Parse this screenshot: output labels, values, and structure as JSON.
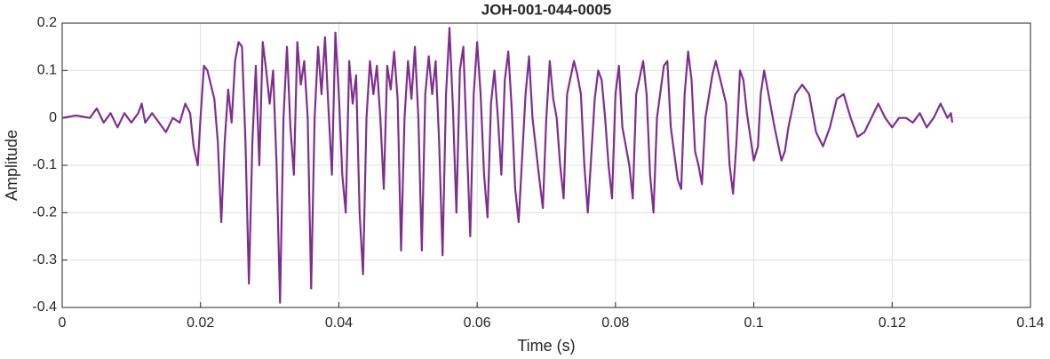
{
  "chart_data": {
    "type": "line",
    "title": "JOH-001-044-0005",
    "x_label": "Time (s)",
    "y_label": "Amplitude",
    "color": "#7e2f8e",
    "grid": true,
    "xlim": [
      0,
      0.14
    ],
    "ylim": [
      -0.4,
      0.2
    ],
    "xticks": [
      0,
      0.02,
      0.04,
      0.06,
      0.08,
      0.1,
      0.12,
      0.14
    ],
    "yticks": [
      -0.4,
      -0.3,
      -0.2,
      -0.1,
      0,
      0.1,
      0.2
    ],
    "x": [
      0,
      0.002,
      0.004,
      0.005,
      0.006,
      0.007,
      0.008,
      0.009,
      0.01,
      0.011,
      0.0115,
      0.012,
      0.013,
      0.014,
      0.015,
      0.016,
      0.017,
      0.0178,
      0.0185,
      0.019,
      0.0196,
      0.02,
      0.0205,
      0.021,
      0.022,
      0.0225,
      0.023,
      0.0235,
      0.024,
      0.0245,
      0.025,
      0.0255,
      0.026,
      0.0265,
      0.027,
      0.0275,
      0.028,
      0.0285,
      0.029,
      0.0295,
      0.03,
      0.0305,
      0.031,
      0.0315,
      0.032,
      0.0325,
      0.033,
      0.0335,
      0.034,
      0.0345,
      0.035,
      0.0355,
      0.036,
      0.0365,
      0.037,
      0.0375,
      0.038,
      0.0385,
      0.039,
      0.0395,
      0.04,
      0.0405,
      0.041,
      0.0415,
      0.042,
      0.0425,
      0.043,
      0.0435,
      0.044,
      0.0445,
      0.045,
      0.0455,
      0.046,
      0.0465,
      0.047,
      0.0475,
      0.048,
      0.0485,
      0.049,
      0.0495,
      0.05,
      0.0505,
      0.051,
      0.0515,
      0.052,
      0.0525,
      0.053,
      0.0535,
      0.054,
      0.0545,
      0.055,
      0.0555,
      0.056,
      0.0565,
      0.057,
      0.0575,
      0.058,
      0.0585,
      0.059,
      0.0595,
      0.06,
      0.0605,
      0.061,
      0.0615,
      0.062,
      0.0625,
      0.063,
      0.0635,
      0.064,
      0.0645,
      0.065,
      0.0655,
      0.066,
      0.067,
      0.0675,
      0.068,
      0.069,
      0.0695,
      0.07,
      0.0705,
      0.071,
      0.0715,
      0.072,
      0.0725,
      0.073,
      0.074,
      0.0745,
      0.075,
      0.0755,
      0.076,
      0.077,
      0.0775,
      0.078,
      0.0785,
      0.079,
      0.0795,
      0.08,
      0.0805,
      0.081,
      0.082,
      0.0825,
      0.083,
      0.084,
      0.0845,
      0.085,
      0.0855,
      0.086,
      0.087,
      0.0875,
      0.088,
      0.089,
      0.0895,
      0.09,
      0.0905,
      0.091,
      0.0915,
      0.092,
      0.0925,
      0.093,
      0.094,
      0.0945,
      0.095,
      0.096,
      0.0965,
      0.097,
      0.0975,
      0.098,
      0.0985,
      0.099,
      0.1,
      0.1006,
      0.101,
      0.1015,
      0.102,
      0.103,
      0.104,
      0.1045,
      0.105,
      0.106,
      0.107,
      0.108,
      0.109,
      0.11,
      0.111,
      0.112,
      0.113,
      0.114,
      0.115,
      0.116,
      0.117,
      0.118,
      0.119,
      0.12,
      0.121,
      0.122,
      0.123,
      0.124,
      0.125,
      0.126,
      0.127,
      0.128,
      0.1285,
      0.1287
    ],
    "values": [
      0,
      0.005,
      0,
      0.02,
      -0.01,
      0.01,
      -0.02,
      0.01,
      -0.01,
      0.01,
      0.03,
      -0.01,
      0.01,
      -0.01,
      -0.03,
      0,
      -0.01,
      0.03,
      0.01,
      -0.06,
      -0.1,
      0,
      0.11,
      0.1,
      0.04,
      -0.05,
      -0.22,
      -0.05,
      0.06,
      -0.01,
      0.12,
      0.16,
      0.15,
      -0.05,
      -0.35,
      -0.05,
      0.11,
      -0.1,
      0.16,
      0.1,
      0.03,
      0.1,
      -0.1,
      -0.39,
      0,
      0.15,
      -0.02,
      -0.12,
      0.16,
      0.07,
      0.12,
      0,
      -0.36,
      0,
      0.15,
      0.05,
      0.17,
      0.02,
      -0.12,
      0.18,
      0.05,
      -0.12,
      -0.2,
      0.12,
      0.03,
      0.09,
      -0.2,
      -0.33,
      0,
      0.12,
      0.05,
      0.11,
      0,
      -0.15,
      0.11,
      0.06,
      0.14,
      0.04,
      -0.28,
      0,
      0.12,
      0.04,
      0.15,
      0,
      -0.28,
      0.05,
      0.13,
      0.05,
      0.12,
      -0.05,
      -0.29,
      0.05,
      0.19,
      0.02,
      -0.2,
      0.1,
      0.15,
      -0.05,
      -0.25,
      0.05,
      0.16,
      0.05,
      -0.12,
      -0.21,
      0.03,
      0.1,
      0,
      -0.12,
      0.08,
      0.14,
      0.02,
      -0.15,
      -0.22,
      0.05,
      0.13,
      0,
      -0.13,
      -0.19,
      0,
      0.12,
      0.04,
      0,
      -0.1,
      -0.17,
      0.05,
      0.12,
      0.09,
      0.05,
      -0.1,
      -0.2,
      0.04,
      0.1,
      0.08,
      0,
      -0.1,
      -0.17,
      0.05,
      0.11,
      -0.02,
      -0.1,
      -0.17,
      0.05,
      0.12,
      0.05,
      -0.12,
      -0.2,
      0,
      0.11,
      0.12,
      -0.02,
      -0.13,
      -0.15,
      0.05,
      0.14,
      0.08,
      -0.07,
      -0.1,
      -0.14,
      0,
      0.09,
      0.12,
      0.09,
      0.03,
      -0.1,
      -0.16,
      -0.05,
      0.1,
      0.08,
      0.01,
      -0.09,
      -0.06,
      0.05,
      0.1,
      0.06,
      -0.02,
      -0.09,
      -0.07,
      -0.02,
      0.05,
      0.07,
      0.05,
      -0.03,
      -0.06,
      -0.02,
      0.04,
      0.05,
      0,
      -0.04,
      -0.03,
      0,
      0.03,
      0,
      -0.02,
      0,
      0,
      -0.01,
      0.01,
      -0.02,
      0,
      0.03,
      0,
      0.01,
      -0.01
    ]
  }
}
